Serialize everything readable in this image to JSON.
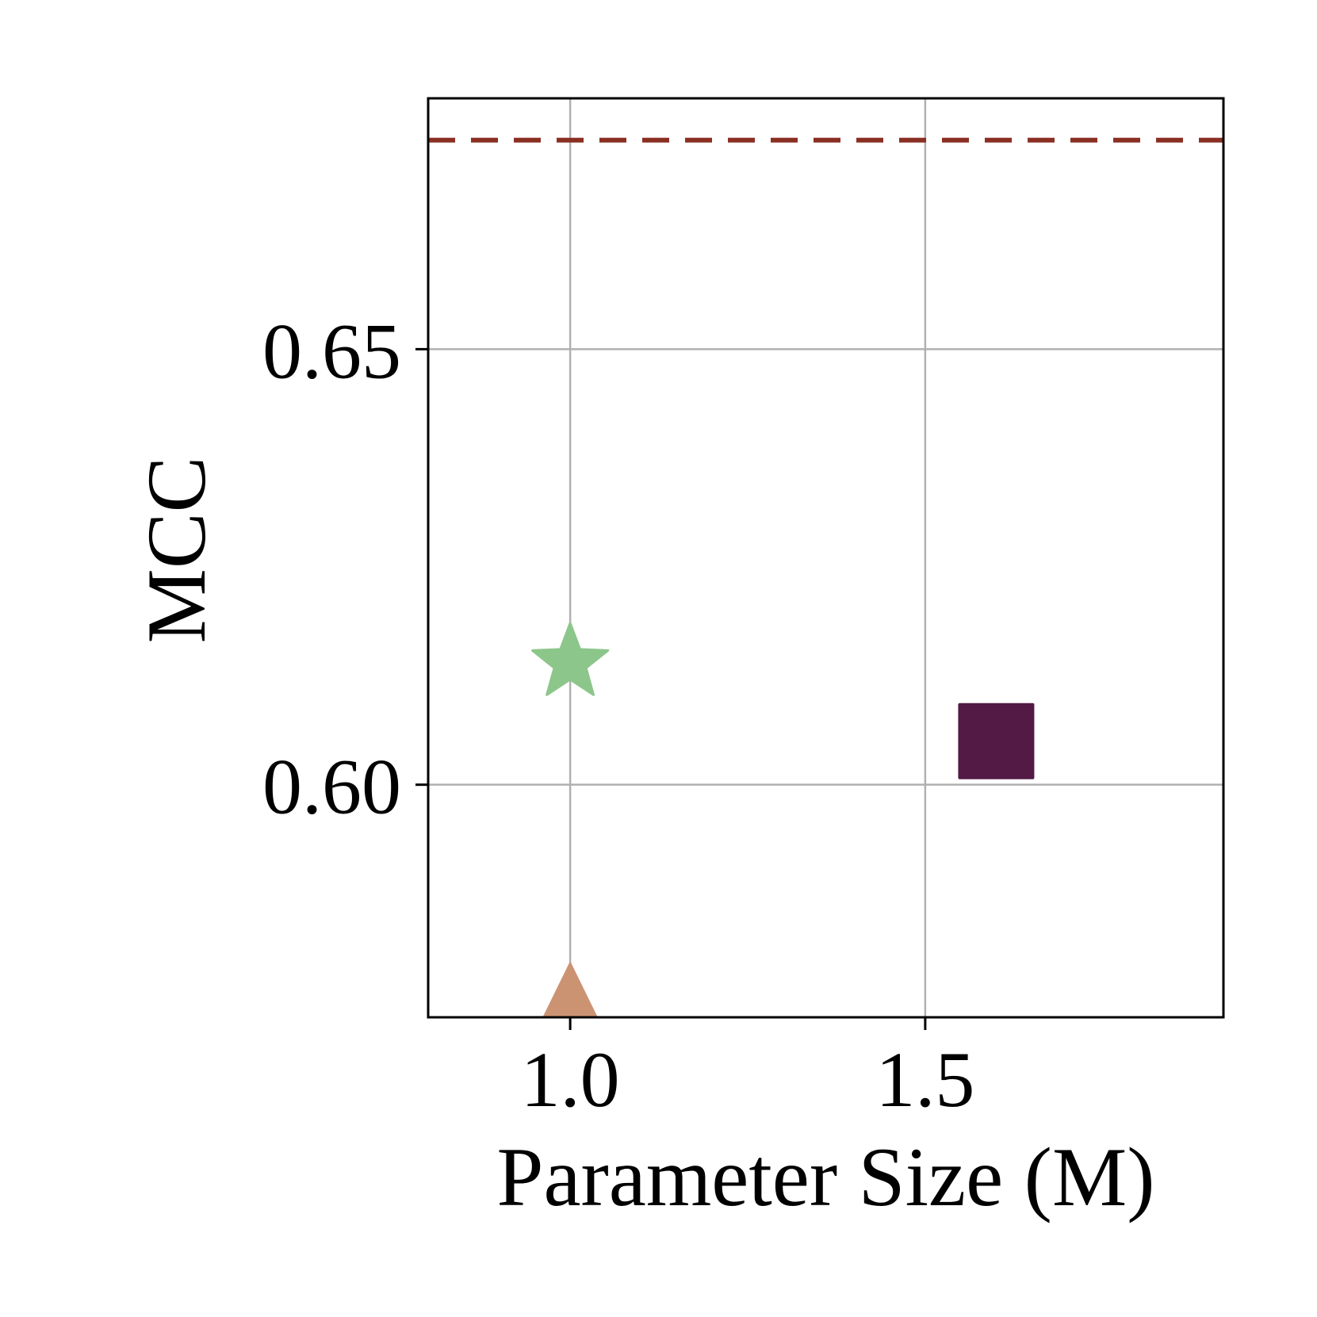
{
  "chart_data": {
    "type": "scatter",
    "title": "",
    "xlabel": "Parameter Size (M)",
    "ylabel": "MCC",
    "xlim": [
      0.8,
      1.92
    ],
    "ylim": [
      0.5733,
      0.6788
    ],
    "xticks": [
      1.0,
      1.5
    ],
    "xtick_labels": [
      "1.0",
      "1.5"
    ],
    "yticks": [
      0.6,
      0.65
    ],
    "ytick_labels": [
      "0.60",
      "0.65"
    ],
    "grid": true,
    "legend": "none",
    "reference_line": {
      "y": 0.674,
      "style": "dashed",
      "color": "#8b2f23"
    },
    "points": [
      {
        "marker": "star",
        "x": 1.0,
        "y": 0.614,
        "color": "#8cc68a"
      },
      {
        "marker": "square",
        "x": 1.6,
        "y": 0.605,
        "color": "#521a45"
      },
      {
        "marker": "triangle",
        "x": 1.0,
        "y": 0.575,
        "color": "#cc9373"
      }
    ]
  }
}
